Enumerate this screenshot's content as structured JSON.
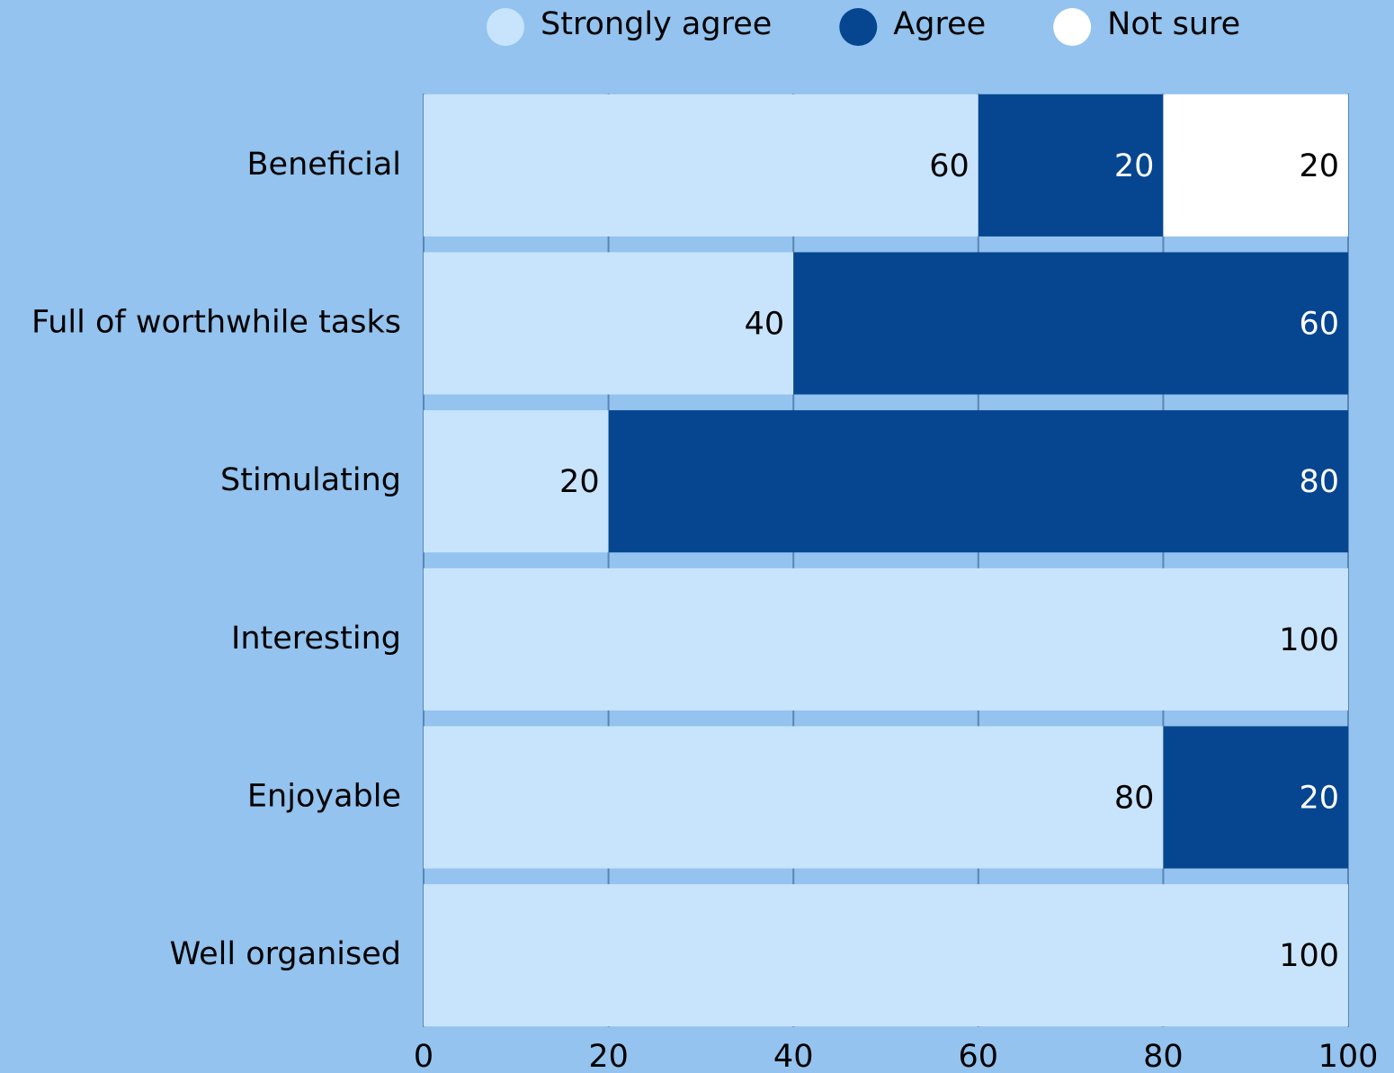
{
  "chart_data": {
    "type": "stacked-barh",
    "categories": [
      "Beneficial",
      "Full of worthwhile tasks",
      "Stimulating",
      "Interesting",
      "Enjoyable",
      "Well organised"
    ],
    "series": [
      {
        "name": "Strongly agree",
        "color": "#c8e4fc",
        "values": [
          60,
          40,
          20,
          100,
          80,
          100
        ]
      },
      {
        "name": "Agree",
        "color": "#064690",
        "values": [
          20,
          60,
          80,
          0,
          20,
          0
        ]
      },
      {
        "name": "Not sure",
        "color": "#ffffff",
        "values": [
          20,
          0,
          0,
          0,
          0,
          0
        ]
      }
    ],
    "xlim": [
      0,
      100
    ],
    "xticks": [
      0,
      20,
      40,
      60,
      80,
      100
    ],
    "grid": true,
    "legend": "top"
  }
}
